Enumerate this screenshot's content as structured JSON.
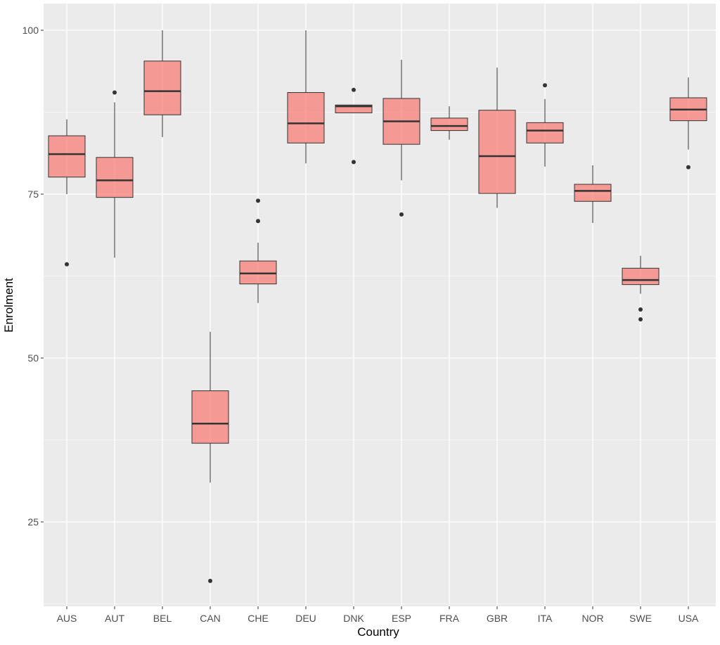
{
  "chart_data": {
    "type": "boxplot",
    "title": "",
    "xlabel": "Country",
    "ylabel": "Enrolment",
    "ylim": [
      12,
      104
    ],
    "yticks": [
      25,
      50,
      75,
      100
    ],
    "grid": true,
    "colors": {
      "box_fill": "#F8766D",
      "box_fill_alpha": 0.7,
      "panel": "#EBEBEB",
      "grid": "#FFFFFF",
      "line": "#333333"
    },
    "categories": [
      "AUS",
      "AUT",
      "BEL",
      "CAN",
      "CHE",
      "DEU",
      "DNK",
      "ESP",
      "FRA",
      "GBR",
      "ITA",
      "NOR",
      "SWE",
      "USA"
    ],
    "boxes": [
      {
        "low": 75.0,
        "q1": 77.6,
        "median": 81.1,
        "q3": 83.9,
        "high": 86.4,
        "outliers": [
          64.3
        ]
      },
      {
        "low": 65.3,
        "q1": 74.5,
        "median": 77.1,
        "q3": 80.6,
        "high": 89.0,
        "outliers": [
          90.5
        ]
      },
      {
        "low": 83.7,
        "q1": 87.1,
        "median": 90.7,
        "q3": 95.3,
        "high": 100.0,
        "outliers": []
      },
      {
        "low": 31.0,
        "q1": 37.0,
        "median": 40.0,
        "q3": 45.0,
        "high": 54.0,
        "outliers": [
          16.0
        ]
      },
      {
        "low": 58.4,
        "q1": 61.3,
        "median": 62.9,
        "q3": 64.8,
        "high": 67.6,
        "outliers": [
          74.0,
          70.9
        ]
      },
      {
        "low": 79.7,
        "q1": 82.8,
        "median": 85.8,
        "q3": 90.5,
        "high": 100.0,
        "outliers": []
      },
      {
        "low": 87.4,
        "q1": 87.4,
        "median": 88.4,
        "q3": 88.6,
        "high": 88.6,
        "outliers": [
          90.9,
          79.9
        ]
      },
      {
        "low": 77.1,
        "q1": 82.6,
        "median": 86.1,
        "q3": 89.6,
        "high": 95.5,
        "outliers": [
          71.9
        ]
      },
      {
        "low": 83.3,
        "q1": 84.7,
        "median": 85.4,
        "q3": 86.6,
        "high": 88.4,
        "outliers": []
      },
      {
        "low": 72.9,
        "q1": 75.1,
        "median": 80.8,
        "q3": 87.8,
        "high": 94.3,
        "outliers": []
      },
      {
        "low": 79.2,
        "q1": 82.8,
        "median": 84.7,
        "q3": 85.9,
        "high": 89.5,
        "outliers": [
          91.6
        ]
      },
      {
        "low": 70.6,
        "q1": 73.9,
        "median": 75.5,
        "q3": 76.5,
        "high": 79.4,
        "outliers": []
      },
      {
        "low": 59.8,
        "q1": 61.2,
        "median": 61.9,
        "q3": 63.7,
        "high": 65.6,
        "outliers": [
          57.4,
          55.9
        ]
      },
      {
        "low": 81.8,
        "q1": 86.2,
        "median": 87.9,
        "q3": 89.7,
        "high": 92.8,
        "outliers": [
          79.1
        ]
      }
    ]
  }
}
